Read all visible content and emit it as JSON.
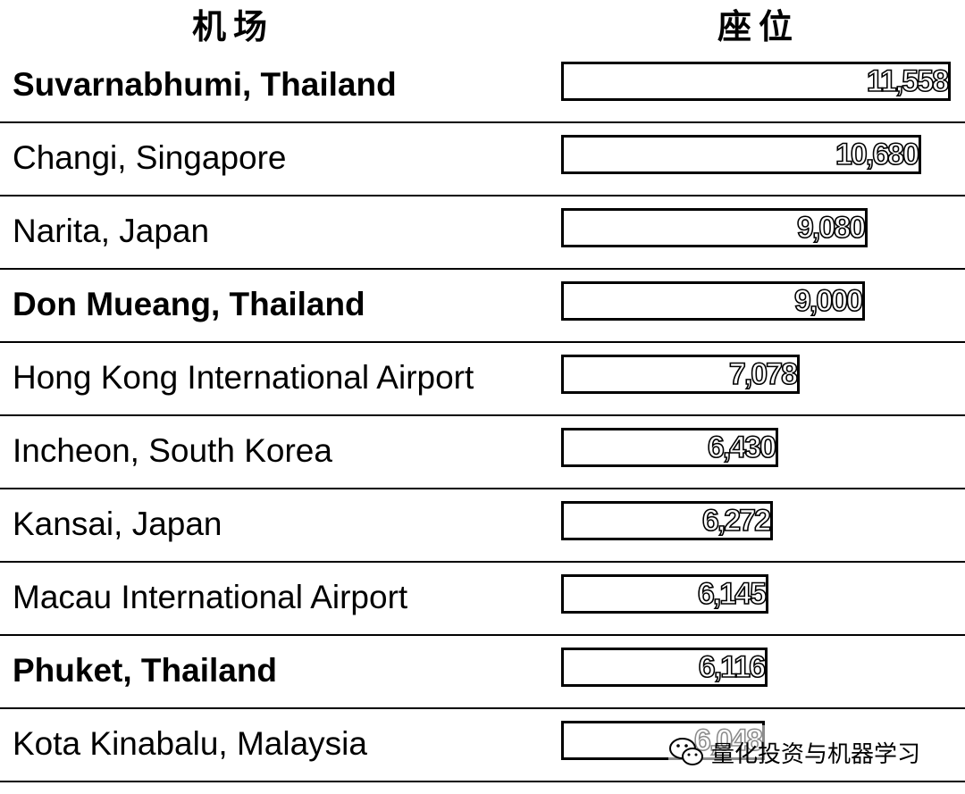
{
  "header": {
    "airport_col": "机场",
    "seats_col": "座位"
  },
  "chart_data": {
    "type": "bar",
    "orientation": "horizontal",
    "xlabel": "座位",
    "ylabel": "机场",
    "xlim": [
      0,
      11558
    ],
    "categories": [
      "Suvarnabhumi, Thailand",
      "Changi, Singapore",
      "Narita, Japan",
      "Don Mueang, Thailand",
      "Hong Kong International Airport",
      "Incheon, South Korea",
      "Kansai, Japan",
      "Macau International Airport",
      "Phuket, Thailand",
      "Kota Kinabalu, Malaysia"
    ],
    "values": [
      11558,
      10680,
      9080,
      9000,
      7078,
      6430,
      6272,
      6145,
      6116,
      6048
    ],
    "value_labels": [
      "11,558",
      "10,680",
      "9,080",
      "9,000",
      "7,078",
      "6,430",
      "6,272",
      "6,145",
      "6,116",
      "6,048"
    ],
    "bold_categories": [
      "Suvarnabhumi, Thailand",
      "Don Mueang, Thailand",
      "Phuket, Thailand"
    ],
    "bar_color": "#ffffff",
    "bar_border_color": "#000000",
    "grid": false
  },
  "watermark": {
    "text": "量化投资与机器学习",
    "icon": "wechat-icon"
  }
}
